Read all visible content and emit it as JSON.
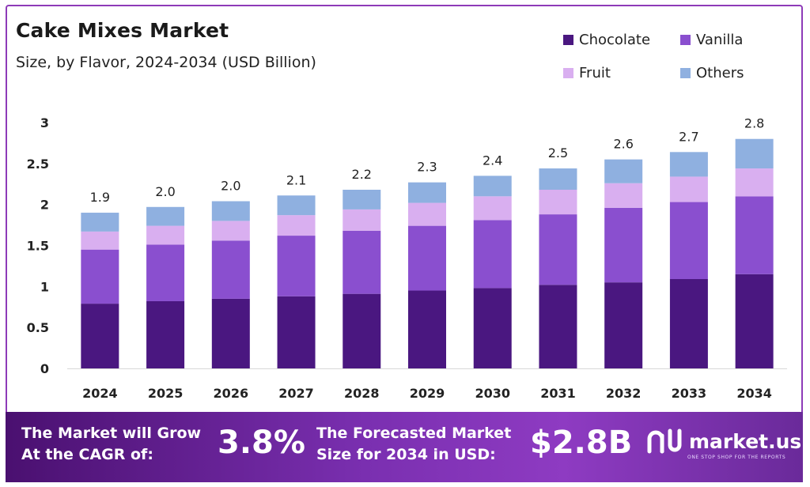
{
  "header": {
    "title": "Cake Mixes Market",
    "subtitle": "Size, by Flavor, 2024-2034 (USD Billion)"
  },
  "legend": [
    {
      "label": "Chocolate",
      "color": "#4a1780"
    },
    {
      "label": "Vanilla",
      "color": "#8a4fcf"
    },
    {
      "label": "Fruit",
      "color": "#d9aff0"
    },
    {
      "label": "Others",
      "color": "#8fb0e0"
    }
  ],
  "chart_data": {
    "type": "bar",
    "stacked": true,
    "title": "Cake Mixes Market",
    "subtitle": "Size, by Flavor, 2024-2034 (USD Billion)",
    "xlabel": "",
    "ylabel": "",
    "ylim": [
      0,
      3
    ],
    "yticks": [
      "0",
      "0.5",
      "1",
      "1.5",
      "2",
      "2.5",
      "3"
    ],
    "grid": false,
    "legend_position": "top-right",
    "categories": [
      "2024",
      "2025",
      "2026",
      "2027",
      "2028",
      "2029",
      "2030",
      "2031",
      "2032",
      "2033",
      "2034"
    ],
    "series": [
      {
        "name": "Chocolate",
        "color": "#4a1780",
        "values": [
          0.79,
          0.82,
          0.85,
          0.88,
          0.91,
          0.95,
          0.98,
          1.02,
          1.05,
          1.09,
          1.15
        ]
      },
      {
        "name": "Vanilla",
        "color": "#8a4fcf",
        "values": [
          0.66,
          0.69,
          0.71,
          0.74,
          0.77,
          0.79,
          0.83,
          0.86,
          0.91,
          0.94,
          0.95
        ]
      },
      {
        "name": "Fruit",
        "color": "#d9aff0",
        "values": [
          0.22,
          0.23,
          0.24,
          0.25,
          0.26,
          0.28,
          0.29,
          0.3,
          0.3,
          0.31,
          0.34
        ]
      },
      {
        "name": "Others",
        "color": "#8fb0e0",
        "values": [
          0.23,
          0.23,
          0.24,
          0.24,
          0.24,
          0.25,
          0.25,
          0.26,
          0.29,
          0.3,
          0.36
        ]
      }
    ],
    "totals": [
      1.9,
      2.0,
      2.0,
      2.1,
      2.2,
      2.3,
      2.4,
      2.5,
      2.6,
      2.7,
      2.8
    ],
    "total_labels": [
      "1.9",
      "2.0",
      "2.0",
      "2.1",
      "2.2",
      "2.3",
      "2.4",
      "2.5",
      "2.6",
      "2.7",
      "2.8"
    ]
  },
  "footer": {
    "cagr_label_line1": "The Market will Grow",
    "cagr_label_line2": "At the CAGR of:",
    "cagr_value": "3.8%",
    "size_label_line1": "The Forecasted Market",
    "size_label_line2": "Size for 2034 in USD:",
    "size_value": "$2.8B",
    "brand_name": "market.us",
    "brand_tagline": "ONE STOP SHOP FOR THE REPORTS"
  }
}
